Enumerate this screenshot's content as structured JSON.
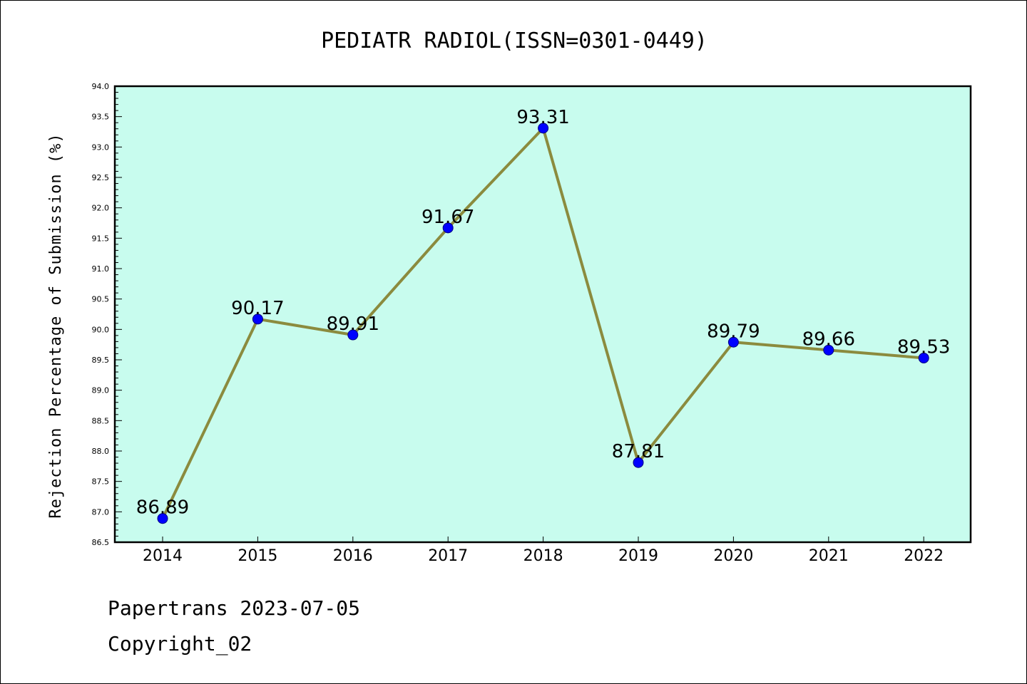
{
  "chart_data": {
    "type": "line",
    "title": "PEDIATR RADIOL(ISSN=0301-0449)",
    "xlabel": "",
    "ylabel": "Rejection Percentage of Submission (%)",
    "categories": [
      "2014",
      "2015",
      "2016",
      "2017",
      "2018",
      "2019",
      "2020",
      "2021",
      "2022"
    ],
    "values": [
      86.89,
      90.17,
      89.91,
      91.67,
      93.31,
      87.81,
      89.79,
      89.66,
      89.53
    ],
    "data_labels": [
      "86.89",
      "90.17",
      "89.91",
      "91.67",
      "93.31",
      "87.81",
      "89.79",
      "89.66",
      "89.53"
    ],
    "ylim": [
      86.5,
      94.0
    ],
    "yticks": [
      "86.5",
      "87.0",
      "87.5",
      "88.0",
      "88.5",
      "89.0",
      "89.5",
      "90.0",
      "90.5",
      "91.0",
      "91.5",
      "92.0",
      "92.5",
      "93.0",
      "93.5",
      "94.0"
    ],
    "grid": false,
    "legend": "none",
    "colors": {
      "plot_background": "#c8fcee",
      "line": "#8b8b3e",
      "marker": "#0000ff"
    }
  },
  "footer": {
    "line1": "Papertrans 2023-07-05",
    "line2": "Copyright_02"
  }
}
